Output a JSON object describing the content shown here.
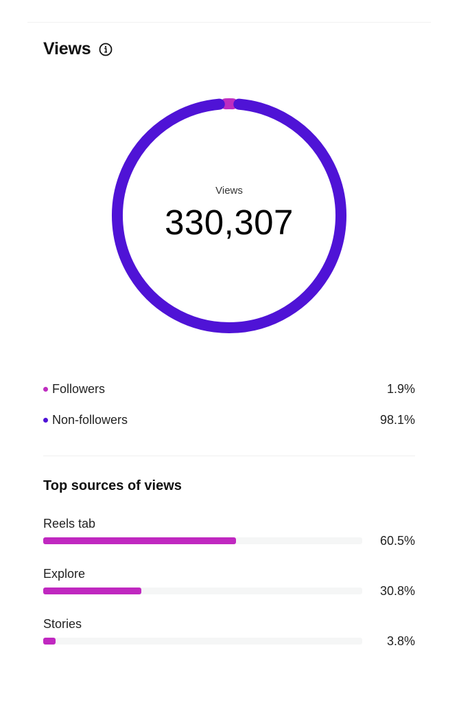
{
  "header": {
    "title": "Views",
    "info_icon": "info-circle-icon"
  },
  "ring": {
    "label": "Views",
    "value": "330,307"
  },
  "legend": [
    {
      "label": "Followers",
      "value": "1.9%",
      "color": "#bf2dc0"
    },
    {
      "label": "Non-followers",
      "value": "98.1%",
      "color": "#4f13d6"
    }
  ],
  "sources": {
    "title": "Top sources of views",
    "items": [
      {
        "label": "Reels tab",
        "value": "60.5%",
        "percent": 60.5
      },
      {
        "label": "Explore",
        "value": "30.8%",
        "percent": 30.8
      },
      {
        "label": "Stories",
        "value": "3.8%",
        "percent": 3.8
      }
    ],
    "bar_color": "#c028c0",
    "track_color": "#f5f6f6"
  },
  "colors": {
    "followers": "#bf2dc0",
    "non_followers": "#4f13d6"
  },
  "chart_data": [
    {
      "type": "pie",
      "title": "Views",
      "center_label": "Views",
      "center_value": 330307,
      "categories": [
        "Followers",
        "Non-followers"
      ],
      "values": [
        1.9,
        98.1
      ],
      "colors": [
        "#bf2dc0",
        "#4f13d6"
      ],
      "style": "donut"
    },
    {
      "type": "bar",
      "title": "Top sources of views",
      "orientation": "horizontal",
      "categories": [
        "Reels tab",
        "Explore",
        "Stories"
      ],
      "values": [
        60.5,
        30.8,
        3.8
      ],
      "unit": "%",
      "xlim": [
        0,
        100
      ]
    }
  ]
}
